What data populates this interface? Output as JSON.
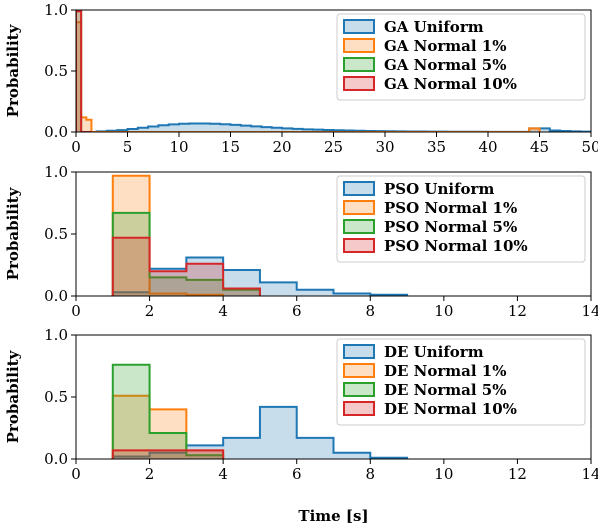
{
  "chart_data": [
    {
      "type": "histogram",
      "xlim": [
        0,
        50
      ],
      "ylim": [
        0,
        1.0
      ],
      "ylabel": "Probability",
      "xticks": [
        0,
        5,
        10,
        15,
        20,
        25,
        30,
        35,
        40,
        45,
        50
      ],
      "yticks": [
        0.0,
        0.5,
        1.0
      ],
      "legend_position": "top-right",
      "series": [
        {
          "name": "GA Uniform",
          "color": "#1f77b4",
          "edges": [
            2,
            3,
            4,
            5,
            6,
            7,
            8,
            9,
            10,
            11,
            12,
            13,
            14,
            15,
            16,
            17,
            18,
            19,
            20,
            21,
            22,
            23,
            24,
            25,
            26,
            27,
            28,
            29,
            30,
            31,
            32,
            33,
            34,
            35,
            36,
            37,
            38,
            39,
            40,
            41,
            42,
            43,
            44,
            45,
            46,
            47,
            48,
            49,
            50
          ],
          "values": [
            0.005,
            0.01,
            0.015,
            0.025,
            0.035,
            0.045,
            0.055,
            0.063,
            0.068,
            0.07,
            0.07,
            0.068,
            0.064,
            0.058,
            0.052,
            0.046,
            0.04,
            0.035,
            0.03,
            0.026,
            0.022,
            0.019,
            0.016,
            0.014,
            0.012,
            0.01,
            0.008,
            0.007,
            0.006,
            0.005,
            0.004,
            0.004,
            0.003,
            0.003,
            0.002,
            0.002,
            0.002,
            0.002,
            0.001,
            0.001,
            0.001,
            0.001,
            0.03,
            0.03,
            0.012,
            0.008,
            0.005,
            0.003
          ]
        },
        {
          "name": "GA Normal 1%",
          "color": "#ff7f0e",
          "edges": [
            0,
            0.5,
            1,
            1.5,
            44,
            45
          ],
          "values": [
            0.9,
            0.12,
            0.1,
            0,
            0.03
          ]
        },
        {
          "name": "GA Normal 5%",
          "color": "#2ca02c",
          "edges": [
            0,
            0.5,
            1,
            1.5
          ],
          "values": [
            0.99,
            0.0,
            0.0
          ]
        },
        {
          "name": "GA Normal 10%",
          "color": "#d62728",
          "edges": [
            0,
            0.5,
            1,
            1.5
          ],
          "values": [
            0.99,
            0.0,
            0.0
          ]
        }
      ]
    },
    {
      "type": "histogram",
      "xlim": [
        0,
        14
      ],
      "ylim": [
        0,
        1.0
      ],
      "ylabel": "Probability",
      "xticks": [
        0,
        2,
        4,
        6,
        8,
        10,
        12,
        14
      ],
      "yticks": [
        0.0,
        0.5,
        1.0
      ],
      "legend_position": "top-right",
      "series": [
        {
          "name": "PSO Uniform",
          "color": "#1f77b4",
          "edges": [
            1,
            2,
            3,
            4,
            5,
            6,
            7,
            8,
            9
          ],
          "values": [
            0.03,
            0.22,
            0.31,
            0.21,
            0.11,
            0.05,
            0.02,
            0.01
          ]
        },
        {
          "name": "PSO Normal 1%",
          "color": "#ff7f0e",
          "edges": [
            1,
            2,
            3,
            4
          ],
          "values": [
            0.97,
            0.02,
            0.01
          ]
        },
        {
          "name": "PSO Normal 5%",
          "color": "#2ca02c",
          "edges": [
            1,
            2,
            3,
            4,
            5
          ],
          "values": [
            0.67,
            0.15,
            0.13,
            0.05
          ]
        },
        {
          "name": "PSO Normal 10%",
          "color": "#d62728",
          "edges": [
            1,
            2,
            3,
            4,
            5
          ],
          "values": [
            0.47,
            0.2,
            0.26,
            0.06
          ]
        }
      ]
    },
    {
      "type": "histogram",
      "xlim": [
        0,
        14
      ],
      "ylim": [
        0,
        1.0
      ],
      "ylabel": "Probability",
      "xlabel": "Time [s]",
      "xticks": [
        0,
        2,
        4,
        6,
        8,
        10,
        12,
        14
      ],
      "yticks": [
        0.0,
        0.5,
        1.0
      ],
      "legend_position": "top-right",
      "series": [
        {
          "name": "DE Uniform",
          "color": "#1f77b4",
          "edges": [
            1,
            2,
            3,
            4,
            5,
            6,
            7,
            8,
            9
          ],
          "values": [
            0.02,
            0.05,
            0.11,
            0.17,
            0.42,
            0.17,
            0.05,
            0.01
          ]
        },
        {
          "name": "DE Normal 1%",
          "color": "#ff7f0e",
          "edges": [
            1,
            2,
            3,
            4
          ],
          "values": [
            0.51,
            0.4,
            0.07
          ]
        },
        {
          "name": "DE Normal 5%",
          "color": "#2ca02c",
          "edges": [
            1,
            2,
            3,
            4
          ],
          "values": [
            0.76,
            0.21,
            0.03
          ]
        },
        {
          "name": "DE Normal 10%",
          "color": "#d62728",
          "edges": [
            1,
            2,
            3,
            4
          ],
          "values": [
            0.07,
            0.07,
            0.07
          ]
        }
      ]
    }
  ]
}
